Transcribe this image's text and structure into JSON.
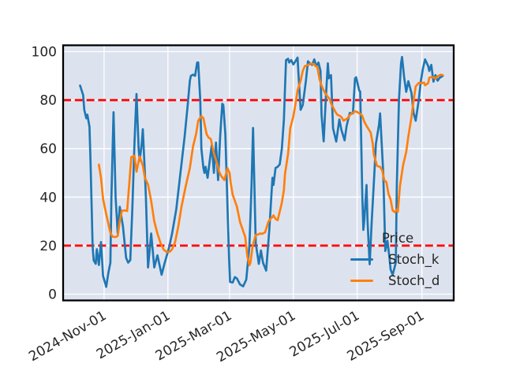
{
  "chart_data": {
    "type": "line",
    "title": "",
    "xlabel": "",
    "ylabel": "",
    "plot_bg": "#dde3ee",
    "grid": true,
    "grid_color": "#ffffff",
    "spine_color": "#000000",
    "tick_color": "#262626",
    "x_axis": {
      "unit": "days_from_first_point",
      "rotation_deg": 30,
      "xlim_days": [
        -16.2,
        357.4
      ],
      "ticks": [
        {
          "label": "2024-Nov-01",
          "day": 23
        },
        {
          "label": "2025-Jan-01",
          "day": 84
        },
        {
          "label": "2025-Mar-01",
          "day": 143
        },
        {
          "label": "2025-May-01",
          "day": 204
        },
        {
          "label": "2025-Jul-01",
          "day": 265
        },
        {
          "label": "2025-Sep-01",
          "day": 327
        }
      ]
    },
    "y_axis": {
      "ticks": [
        0,
        20,
        40,
        60,
        80,
        100
      ],
      "ylim": [
        -2.6,
        102.6
      ]
    },
    "hlines": [
      {
        "name": "overbought-line",
        "y": 80,
        "color": "#ff0000",
        "style": "dashed"
      },
      {
        "name": "oversold-line",
        "y": 20,
        "color": "#ff0000",
        "style": "dashed"
      }
    ],
    "legend": {
      "title": "Price",
      "position": "lower right",
      "frame": false
    },
    "series": [
      {
        "name": "Stoch_k",
        "color": "#1f77b4",
        "points": [
          [
            0,
            86
          ],
          [
            3,
            82
          ],
          [
            4,
            76
          ],
          [
            6,
            72.5
          ],
          [
            7,
            74
          ],
          [
            9,
            69
          ],
          [
            10,
            55
          ],
          [
            12,
            19.5
          ],
          [
            13,
            14
          ],
          [
            15,
            12.5
          ],
          [
            16,
            18.5
          ],
          [
            18,
            12
          ],
          [
            20,
            21.5
          ],
          [
            22,
            7.5
          ],
          [
            24,
            4.5
          ],
          [
            25,
            3
          ],
          [
            27,
            8.5
          ],
          [
            29,
            13
          ],
          [
            30,
            40
          ],
          [
            32,
            75
          ],
          [
            34,
            40
          ],
          [
            36,
            25
          ],
          [
            38,
            36
          ],
          [
            41,
            28
          ],
          [
            44,
            15
          ],
          [
            46,
            13
          ],
          [
            48,
            14
          ],
          [
            50,
            35
          ],
          [
            52,
            62
          ],
          [
            54,
            82.5
          ],
          [
            56,
            60
          ],
          [
            57,
            55
          ],
          [
            59,
            62
          ],
          [
            60,
            68
          ],
          [
            62,
            50
          ],
          [
            63,
            40
          ],
          [
            65,
            11
          ],
          [
            68,
            25
          ],
          [
            71,
            11
          ],
          [
            74,
            16
          ],
          [
            77,
            10
          ],
          [
            78,
            8
          ],
          [
            81,
            13
          ],
          [
            85,
            19
          ],
          [
            88,
            25
          ],
          [
            92,
            35
          ],
          [
            96,
            50
          ],
          [
            100,
            65
          ],
          [
            103,
            78
          ],
          [
            105,
            88
          ],
          [
            106,
            90
          ],
          [
            108,
            90.5
          ],
          [
            110,
            90
          ],
          [
            112,
            95.5
          ],
          [
            113,
            95.5
          ],
          [
            115,
            80
          ],
          [
            116,
            60
          ],
          [
            118,
            52
          ],
          [
            119,
            50
          ],
          [
            120,
            52.5
          ],
          [
            122,
            48
          ],
          [
            124,
            55
          ],
          [
            126,
            61.5
          ],
          [
            128,
            50
          ],
          [
            130,
            62.5
          ],
          [
            132,
            47
          ],
          [
            134,
            65
          ],
          [
            136,
            78.5
          ],
          [
            137,
            78
          ],
          [
            139,
            66
          ],
          [
            141,
            36
          ],
          [
            142.5,
            15
          ],
          [
            143.5,
            5
          ],
          [
            146,
            4.8
          ],
          [
            148,
            7
          ],
          [
            150,
            6.5
          ],
          [
            153,
            4
          ],
          [
            156,
            3.2
          ],
          [
            159,
            6
          ],
          [
            162,
            20
          ],
          [
            164,
            45
          ],
          [
            165.5,
            68.5
          ],
          [
            168,
            21
          ],
          [
            171,
            12.5
          ],
          [
            173,
            18
          ],
          [
            175,
            13
          ],
          [
            178,
            9.7
          ],
          [
            181,
            26.5
          ],
          [
            184,
            48
          ],
          [
            185,
            45
          ],
          [
            187,
            52
          ],
          [
            189,
            52.5
          ],
          [
            191,
            53.5
          ],
          [
            193,
            60
          ],
          [
            195,
            72
          ],
          [
            196,
            85
          ],
          [
            197,
            96.5
          ],
          [
            199,
            97
          ],
          [
            200,
            95.5
          ],
          [
            202,
            96.5
          ],
          [
            204,
            94.7
          ],
          [
            206,
            96
          ],
          [
            208,
            97.5
          ],
          [
            209,
            90
          ],
          [
            211,
            76
          ],
          [
            213,
            78
          ],
          [
            216,
            88
          ],
          [
            218,
            96
          ],
          [
            220,
            95
          ],
          [
            222,
            94.5
          ],
          [
            224,
            96.8
          ],
          [
            226,
            94
          ],
          [
            228,
            95.5
          ],
          [
            230,
            92
          ],
          [
            231,
            74
          ],
          [
            233,
            63
          ],
          [
            235,
            80
          ],
          [
            237,
            95.2
          ],
          [
            238,
            89
          ],
          [
            240,
            90.3
          ],
          [
            242,
            68.3
          ],
          [
            245,
            62.9
          ],
          [
            248,
            72
          ],
          [
            250,
            67.7
          ],
          [
            253,
            63.4
          ],
          [
            255,
            69.4
          ],
          [
            258,
            74.7
          ],
          [
            261,
            74.5
          ],
          [
            263,
            88.9
          ],
          [
            264,
            89.4
          ],
          [
            267,
            84
          ],
          [
            268,
            83.5
          ],
          [
            270,
            40
          ],
          [
            271,
            26.5
          ],
          [
            272,
            31
          ],
          [
            274,
            45
          ],
          [
            275,
            30
          ],
          [
            277,
            12.3
          ],
          [
            279,
            30
          ],
          [
            281,
            46
          ],
          [
            283,
            62
          ],
          [
            286,
            70
          ],
          [
            287,
            74.5
          ],
          [
            290,
            50
          ],
          [
            292,
            17.8
          ],
          [
            294,
            22
          ],
          [
            296,
            15
          ],
          [
            297,
            10.2
          ],
          [
            299,
            8
          ],
          [
            300,
            9.5
          ],
          [
            302,
            13
          ],
          [
            303,
            45
          ],
          [
            305,
            80
          ],
          [
            307,
            95
          ],
          [
            308,
            97.8
          ],
          [
            310,
            89.4
          ],
          [
            312,
            83.4
          ],
          [
            314,
            87.8
          ],
          [
            317,
            82.9
          ],
          [
            319,
            74.7
          ],
          [
            321,
            71.5
          ],
          [
            324,
            80
          ],
          [
            326,
            88
          ],
          [
            328,
            93
          ],
          [
            330,
            96.8
          ],
          [
            333,
            94
          ],
          [
            334,
            92
          ],
          [
            336,
            94.5
          ],
          [
            338,
            87.6
          ],
          [
            340,
            90.3
          ],
          [
            342,
            88
          ],
          [
            344,
            89.2
          ],
          [
            347,
            90
          ]
        ]
      },
      {
        "name": "Stoch_d",
        "color": "#ff7f0e",
        "points": [
          [
            18,
            53.4
          ],
          [
            20,
            48
          ],
          [
            22,
            39.3
          ],
          [
            25,
            33
          ],
          [
            29,
            25.3
          ],
          [
            31,
            23.7
          ],
          [
            34,
            23.5
          ],
          [
            36,
            24
          ],
          [
            38,
            30
          ],
          [
            40,
            34.4
          ],
          [
            43,
            34.5
          ],
          [
            45,
            34.3
          ],
          [
            47,
            45
          ],
          [
            49,
            56.5
          ],
          [
            52,
            57
          ],
          [
            54,
            50.5
          ],
          [
            57,
            56.8
          ],
          [
            60,
            53
          ],
          [
            62,
            48
          ],
          [
            65,
            45.2
          ],
          [
            68,
            38.4
          ],
          [
            71,
            30
          ],
          [
            74,
            25
          ],
          [
            77,
            21
          ],
          [
            80,
            18.3
          ],
          [
            83,
            17.3
          ],
          [
            86,
            17.5
          ],
          [
            88,
            18.5
          ],
          [
            91,
            21.6
          ],
          [
            94,
            28
          ],
          [
            97,
            36
          ],
          [
            101,
            44.4
          ],
          [
            105,
            52
          ],
          [
            108,
            60.8
          ],
          [
            111,
            66
          ],
          [
            113,
            71.5
          ],
          [
            116,
            73.4
          ],
          [
            118,
            72.5
          ],
          [
            121,
            66
          ],
          [
            123,
            64.5
          ],
          [
            125,
            64
          ],
          [
            128,
            58
          ],
          [
            131,
            54
          ],
          [
            133,
            50.5
          ],
          [
            135,
            48.7
          ],
          [
            138,
            47
          ],
          [
            141,
            51.9
          ],
          [
            143,
            50
          ],
          [
            144,
            46
          ],
          [
            146,
            41
          ],
          [
            150,
            36.1
          ],
          [
            153,
            29.7
          ],
          [
            156,
            26
          ],
          [
            158,
            23.5
          ],
          [
            160,
            15.6
          ],
          [
            162,
            11.9
          ],
          [
            163,
            13
          ],
          [
            165,
            19.7
          ],
          [
            168,
            24.4
          ],
          [
            170,
            24.5
          ],
          [
            172,
            25
          ],
          [
            174,
            24.8
          ],
          [
            177,
            25.5
          ],
          [
            180,
            29.7
          ],
          [
            182,
            31
          ],
          [
            184,
            31.8
          ],
          [
            185,
            32.5
          ],
          [
            187,
            31
          ],
          [
            189,
            30.5
          ],
          [
            191,
            34
          ],
          [
            193,
            37.7
          ],
          [
            195,
            43
          ],
          [
            196,
            49.5
          ],
          [
            199,
            57.9
          ],
          [
            201,
            68.3
          ],
          [
            204,
            73.4
          ],
          [
            206,
            78.2
          ],
          [
            208,
            84
          ],
          [
            211,
            88
          ],
          [
            213,
            92
          ],
          [
            215,
            94
          ],
          [
            218,
            94.5
          ],
          [
            221,
            95
          ],
          [
            224,
            94.8
          ],
          [
            225,
            94.1
          ],
          [
            227,
            93.6
          ],
          [
            229,
            88.7
          ],
          [
            231,
            86
          ],
          [
            233,
            84
          ],
          [
            235,
            82.5
          ],
          [
            236,
            81.9
          ],
          [
            239,
            80.3
          ],
          [
            240,
            78.6
          ],
          [
            242,
            77
          ],
          [
            244,
            75.3
          ],
          [
            246,
            74
          ],
          [
            248,
            73.6
          ],
          [
            250,
            73
          ],
          [
            252,
            71.5
          ],
          [
            254,
            72
          ],
          [
            256,
            72.5
          ],
          [
            257,
            73.4
          ],
          [
            260,
            74.5
          ],
          [
            263,
            75.3
          ],
          [
            264,
            75.3
          ],
          [
            266,
            74.8
          ],
          [
            269,
            74
          ],
          [
            270,
            73.4
          ],
          [
            272,
            71
          ],
          [
            274,
            69.4
          ],
          [
            276,
            68
          ],
          [
            278,
            66.6
          ],
          [
            280,
            62
          ],
          [
            281,
            57.5
          ],
          [
            284,
            53
          ],
          [
            285,
            52.7
          ],
          [
            287,
            52.5
          ],
          [
            289,
            51
          ],
          [
            291,
            47
          ],
          [
            293,
            46.2
          ],
          [
            295,
            41.4
          ],
          [
            297,
            39
          ],
          [
            299,
            34.5
          ],
          [
            301,
            33.8
          ],
          [
            303,
            34.9
          ],
          [
            304,
            34
          ],
          [
            306,
            44.6
          ],
          [
            309,
            53.2
          ],
          [
            312,
            58.6
          ],
          [
            314,
            65
          ],
          [
            317,
            73
          ],
          [
            319,
            79.7
          ],
          [
            321,
            85.6
          ],
          [
            324,
            87.1
          ],
          [
            327,
            87
          ],
          [
            329,
            87.2
          ],
          [
            330,
            86.1
          ],
          [
            333,
            87
          ],
          [
            334,
            89.2
          ],
          [
            336,
            89.5
          ],
          [
            339,
            89.3
          ],
          [
            340,
            88.9
          ],
          [
            342,
            89.8
          ],
          [
            345,
            90.5
          ],
          [
            347,
            90.3
          ]
        ]
      }
    ]
  }
}
